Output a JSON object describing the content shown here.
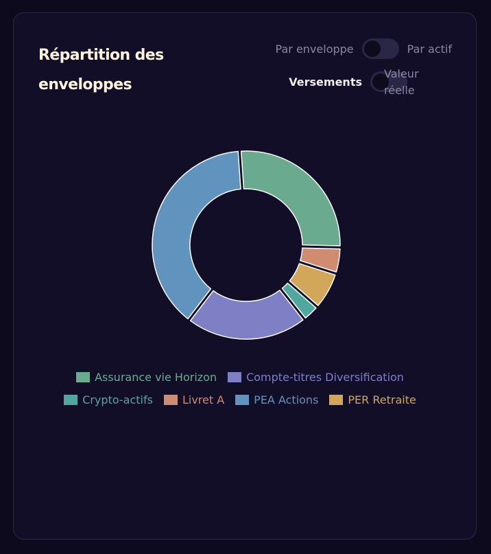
{
  "card": {
    "title": "Répartition des enveloppes",
    "toggles": [
      {
        "left_label": "Par enveloppe",
        "right_label": "Par actif",
        "state": "off"
      },
      {
        "left_label": "Versements",
        "right_label_line1": "Valeur",
        "right_label_line2": "réelle",
        "state": "off"
      }
    ]
  },
  "chart_data": {
    "type": "pie",
    "variant": "donut",
    "title": "Répartition des enveloppes",
    "legend_position": "bottom",
    "slices": [
      {
        "name": "Assurance vie Horizon",
        "value": 26.5,
        "color": "#6aaa8e"
      },
      {
        "name": "Livret A",
        "value": 4.5,
        "color": "#d08b70"
      },
      {
        "name": "PER Retraite",
        "value": 6.5,
        "color": "#d3a75a"
      },
      {
        "name": "Crypto-actifs",
        "value": 3.0,
        "color": "#4fa8a0"
      },
      {
        "name": "Compte-titres Diversification",
        "value": 21.0,
        "color": "#7f7fc6"
      },
      {
        "name": "PEA Actions",
        "value": 38.5,
        "color": "#6093be"
      }
    ],
    "legend": [
      {
        "name": "Assurance vie Horizon",
        "color": "#6aaa8e"
      },
      {
        "name": "Compte-titres Diversification",
        "color": "#7f7fc6"
      },
      {
        "name": "Crypto-actifs",
        "color": "#4fa8a0"
      },
      {
        "name": "Livret A",
        "color": "#d08b70"
      },
      {
        "name": "PEA Actions",
        "color": "#6093be"
      },
      {
        "name": "PER Retraite",
        "color": "#d3a75a"
      }
    ]
  }
}
